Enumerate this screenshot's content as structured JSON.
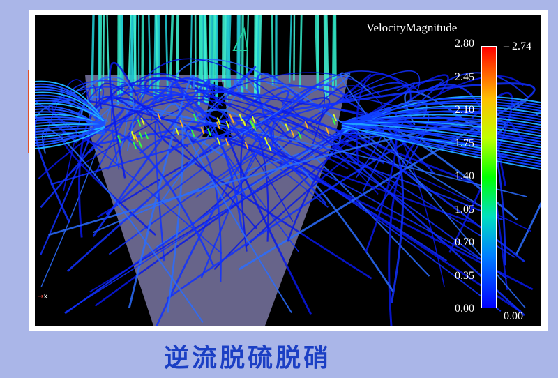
{
  "legend": {
    "title": "VelocityMagnitude",
    "ticks": [
      "2.80",
      "2.45",
      "2.10",
      "1.75",
      "1.40",
      "1.05",
      "0.70",
      "0.35",
      "0.00"
    ],
    "max_label": "2.74",
    "min_label": "0.00",
    "range": [
      0.0,
      2.8
    ],
    "colormap": [
      "#0000ff",
      "#00e0c0",
      "#00ff00",
      "#ffc000",
      "#ff0000"
    ]
  },
  "axis_indicator": "x",
  "caption": "逆流脱硫脱硝",
  "colors": {
    "background": "#aab6e8",
    "caption": "#1b3fc4",
    "vessel": "#8a86b8"
  }
}
